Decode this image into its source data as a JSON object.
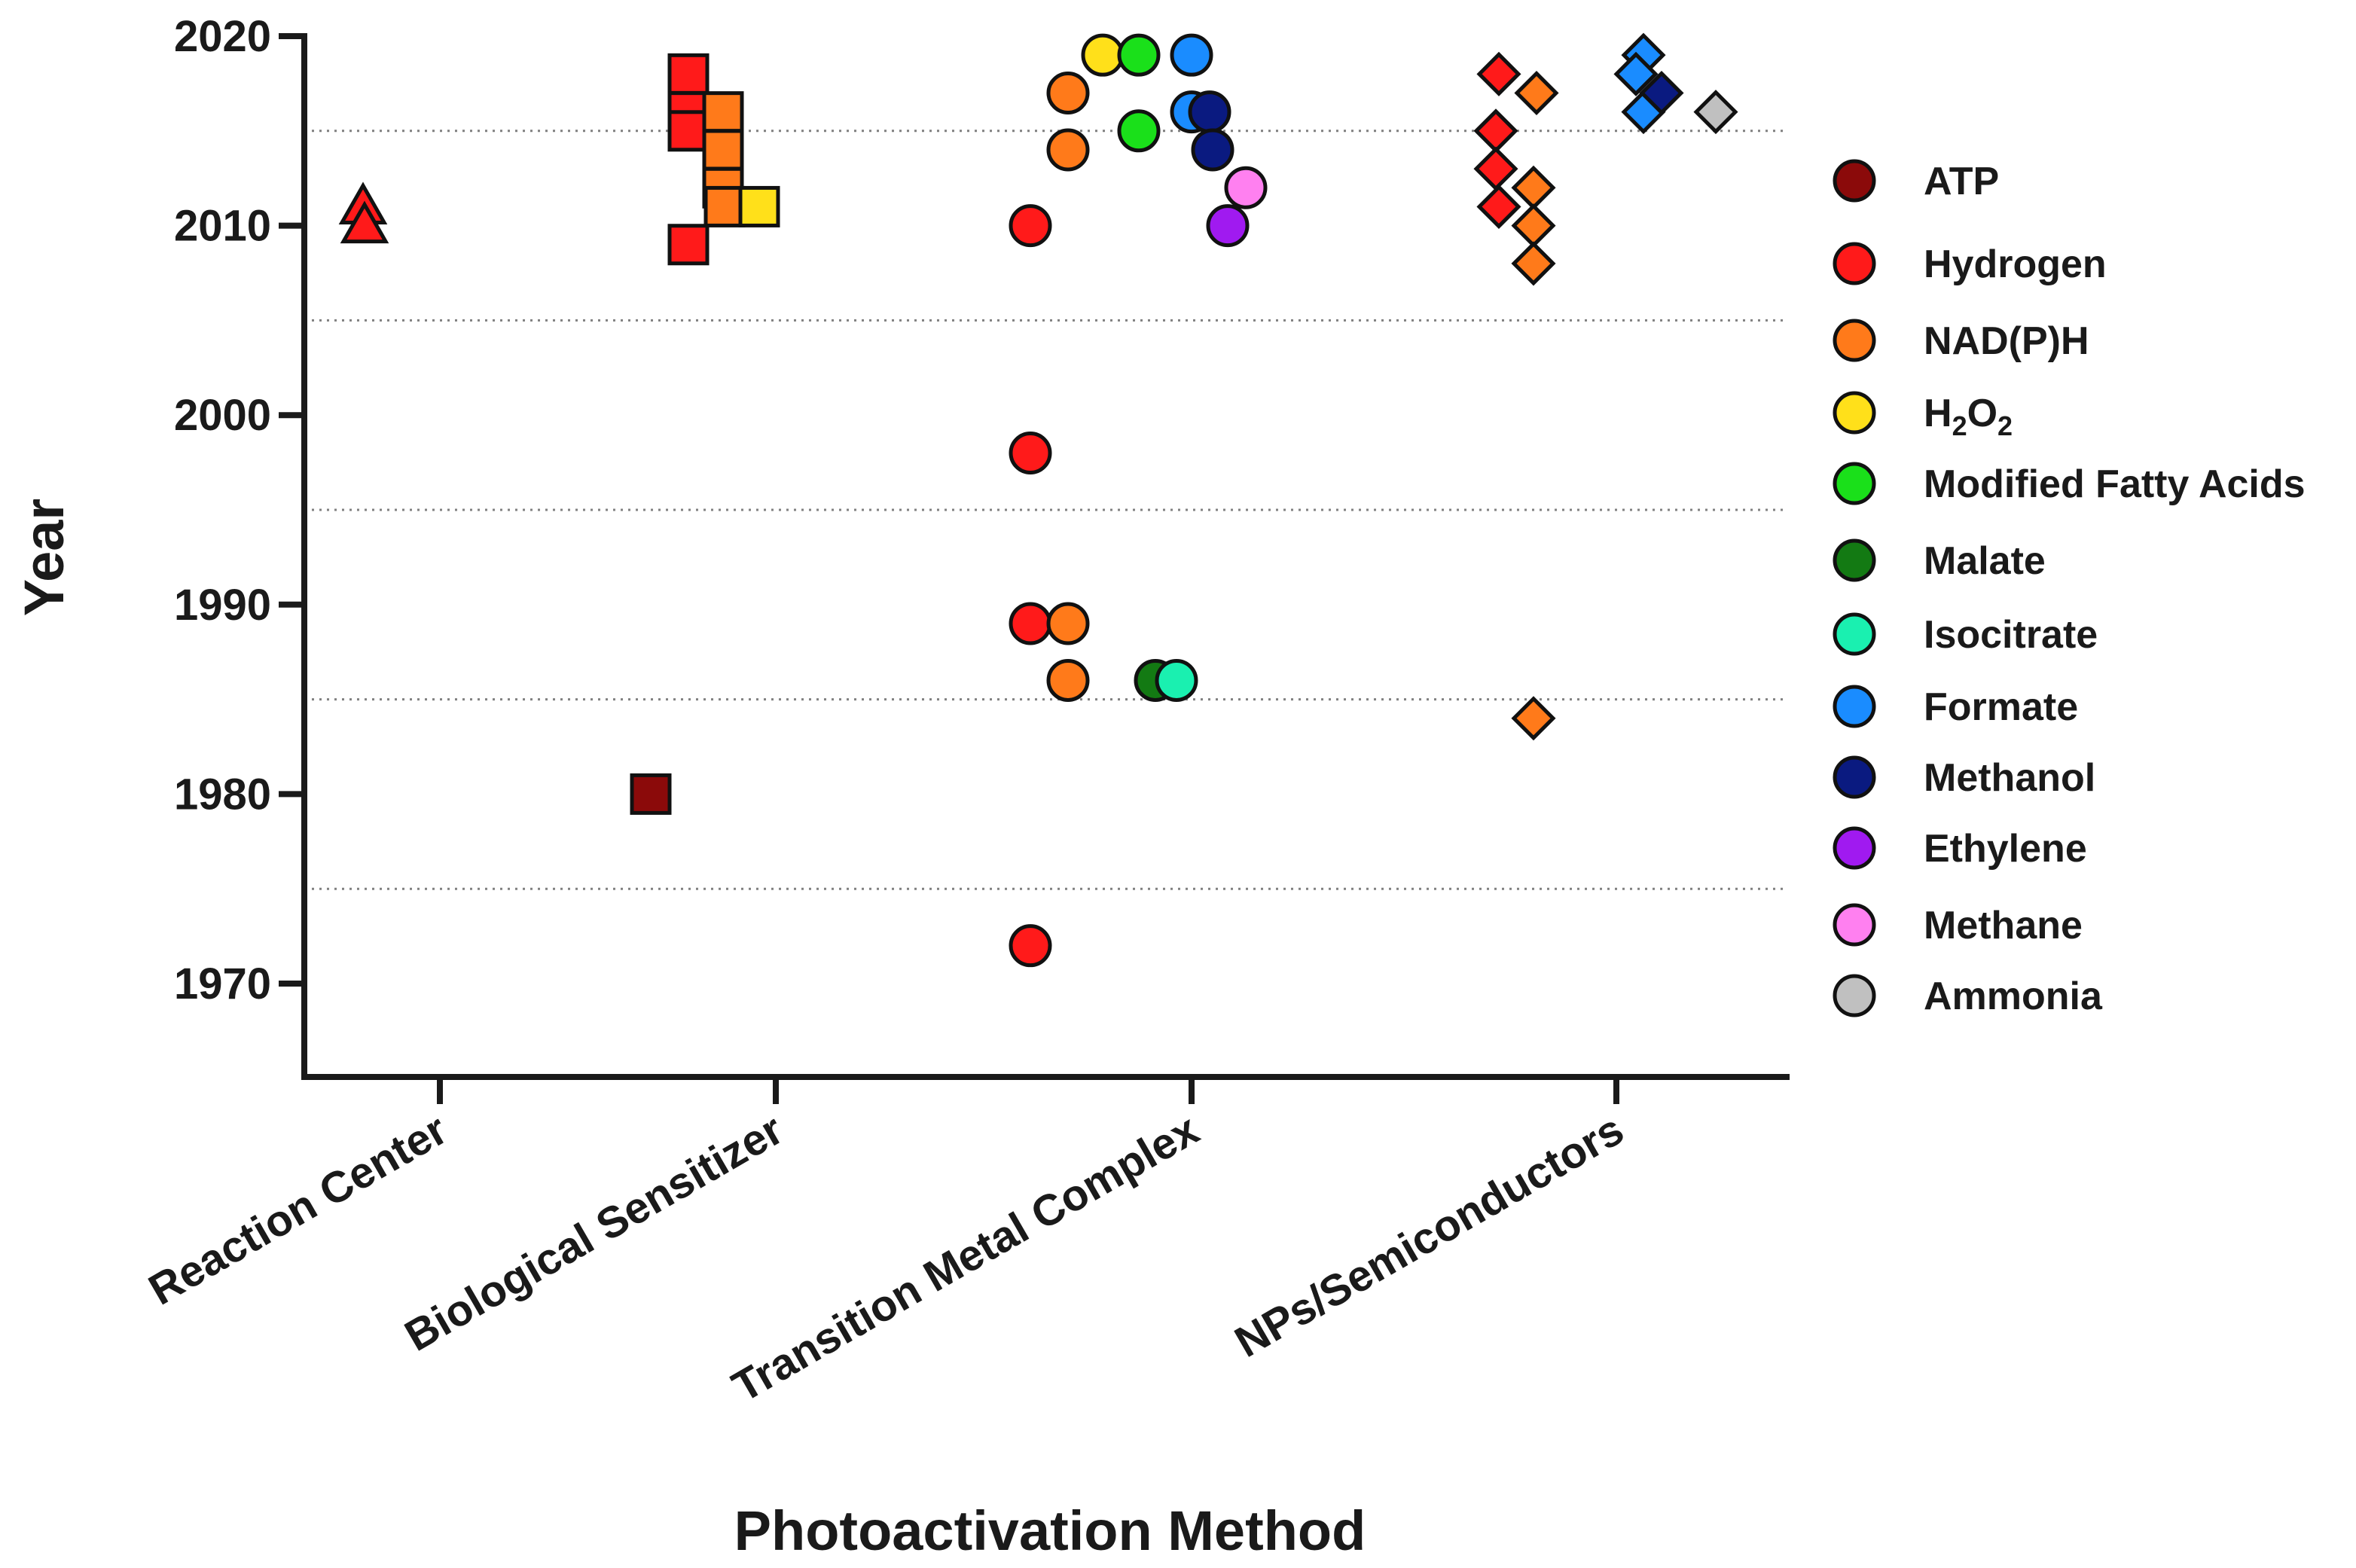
{
  "chart_data": {
    "type": "scatter",
    "xlabel": "Photoactivation Method",
    "ylabel": "Year",
    "ylim": [
      1965,
      2020
    ],
    "yticks": [
      "2020",
      "2010",
      "2000",
      "1990",
      "1980",
      "1970"
    ],
    "grid": "dotted horizontal lines at 1975, 1985, 1995, 2005, 2015",
    "categories": [
      "Reaction Center",
      "Biological Sensitizer",
      "Transition Metal Complex",
      "NPs/Semiconductors"
    ],
    "markers_by_category": {
      "Reaction Center": "triangle",
      "Biological Sensitizer": "square",
      "Transition Metal Complex": "circle",
      "NPs/Semiconductors": "diamond"
    },
    "legend": {
      "position": "right",
      "entries": [
        {
          "label": "ATP",
          "color": "#8B0A0A"
        },
        {
          "label": "Hydrogen",
          "color": "#FF1A1A"
        },
        {
          "label": "NAD(P)H",
          "color": "#FF7A1A"
        },
        {
          "label": "H2O2",
          "main": "H",
          "sub1": "2",
          "mid": "O",
          "sub2": "2",
          "color": "#FFE01A"
        },
        {
          "label": "Modified Fatty Acids",
          "color": "#1AE01A"
        },
        {
          "label": "Malate",
          "color": "#137A13"
        },
        {
          "label": "Isocitrate",
          "color": "#1AF0B0"
        },
        {
          "label": "Formate",
          "color": "#1A8CFF"
        },
        {
          "label": "Methanol",
          "color": "#0A1A80"
        },
        {
          "label": "Ethylene",
          "color": "#A01AF0"
        },
        {
          "label": "Methane",
          "color": "#FF80F0"
        },
        {
          "label": "Ammonia",
          "color": "#C0C0C0"
        }
      ]
    },
    "series": [
      {
        "category": "Reaction Center",
        "product": "Hydrogen",
        "years": [
          2011,
          2010
        ]
      },
      {
        "category": "Biological Sensitizer",
        "product": "ATP",
        "years": [
          1980
        ]
      },
      {
        "category": "Biological Sensitizer",
        "product": "Hydrogen",
        "years": [
          2018,
          2016,
          2015,
          2009
        ]
      },
      {
        "category": "Biological Sensitizer",
        "product": "NAD(P)H",
        "years": [
          2016,
          2014,
          2012,
          2011
        ]
      },
      {
        "category": "Biological Sensitizer",
        "product": "H2O2",
        "years": [
          2011
        ]
      },
      {
        "category": "Transition Metal Complex",
        "product": "Hydrogen",
        "years": [
          2010,
          1998,
          1989,
          1972
        ]
      },
      {
        "category": "Transition Metal Complex",
        "product": "NAD(P)H",
        "years": [
          2017,
          2014,
          1989,
          1986
        ]
      },
      {
        "category": "Transition Metal Complex",
        "product": "H2O2",
        "years": [
          2019
        ]
      },
      {
        "category": "Transition Metal Complex",
        "product": "Modified Fatty Acids",
        "years": [
          2019,
          2015
        ]
      },
      {
        "category": "Transition Metal Complex",
        "product": "Malate",
        "years": [
          1986
        ]
      },
      {
        "category": "Transition Metal Complex",
        "product": "Isocitrate",
        "years": [
          1986
        ]
      },
      {
        "category": "Transition Metal Complex",
        "product": "Formate",
        "years": [
          2019,
          2016
        ]
      },
      {
        "category": "Transition Metal Complex",
        "product": "Methanol",
        "years": [
          2016,
          2014
        ]
      },
      {
        "category": "Transition Metal Complex",
        "product": "Ethylene",
        "years": [
          2010
        ]
      },
      {
        "category": "Transition Metal Complex",
        "product": "Methane",
        "years": [
          2012
        ]
      },
      {
        "category": "NPs/Semiconductors",
        "product": "Hydrogen",
        "years": [
          2018,
          2015,
          2013,
          2011
        ]
      },
      {
        "category": "NPs/Semiconductors",
        "product": "NAD(P)H",
        "years": [
          2017,
          2012,
          2010,
          2008,
          1984
        ]
      },
      {
        "category": "NPs/Semiconductors",
        "product": "Formate",
        "years": [
          2019,
          2018,
          2016
        ]
      },
      {
        "category": "NPs/Semiconductors",
        "product": "Methanol",
        "years": [
          2017
        ]
      },
      {
        "category": "NPs/Semiconductors",
        "product": "Ammonia",
        "years": [
          2016
        ]
      }
    ]
  }
}
